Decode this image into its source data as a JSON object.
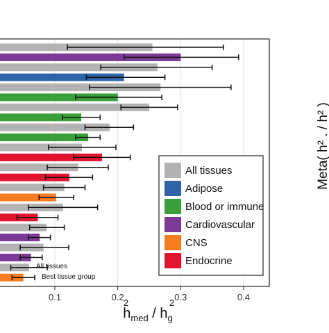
{
  "chart_data": {
    "type": "bar",
    "orientation": "horizontal",
    "xlabel": "h²med / h²g",
    "xlabel_parts": {
      "main_left": "h",
      "sup_left": "2",
      "sub_left": "med",
      "sep": " / ",
      "main_right": "h",
      "sup_right": "2",
      "sub_right": "g"
    },
    "right_axis_label": "Meta( h² . / h² )",
    "xlim": [
      -0.08,
      0.44
    ],
    "x_ticks": [
      0.1,
      0.2,
      0.3,
      0.4
    ],
    "x_tick_labels": [
      "0.1",
      "0.2",
      "0.3",
      "0.4"
    ],
    "grid": true,
    "legend_placement": "bottom-right",
    "legend": [
      {
        "label": "All tissues",
        "color": "#b3b3b3"
      },
      {
        "label": "Adipose",
        "color": "#2f64a8"
      },
      {
        "label": "Blood or immune",
        "color": "#3a9e3a"
      },
      {
        "label": "Cardiovascular",
        "color": "#7c3a96"
      },
      {
        "label": "CNS",
        "color": "#f57d1f"
      },
      {
        "label": "Endocrine",
        "color": "#e0142e"
      }
    ],
    "bars": [
      {
        "value": 0.255,
        "lo": 0.12,
        "hi": 0.368,
        "color": "#b3b3b3"
      },
      {
        "value": 0.3,
        "lo": 0.21,
        "hi": 0.392,
        "color": "#7c3a96"
      },
      {
        "value": 0.263,
        "lo": 0.173,
        "hi": 0.35,
        "color": "#b3b3b3"
      },
      {
        "value": 0.21,
        "lo": 0.15,
        "hi": 0.275,
        "color": "#2f64a8"
      },
      {
        "value": 0.268,
        "lo": 0.155,
        "hi": 0.38,
        "color": "#b3b3b3"
      },
      {
        "value": 0.2,
        "lo": 0.133,
        "hi": 0.27,
        "color": "#3a9e3a"
      },
      {
        "value": 0.25,
        "lo": 0.205,
        "hi": 0.295,
        "color": "#b3b3b3"
      },
      {
        "value": 0.142,
        "lo": 0.112,
        "hi": 0.172,
        "color": "#3a9e3a"
      },
      {
        "value": 0.187,
        "lo": 0.148,
        "hi": 0.225,
        "color": "#b3b3b3"
      },
      {
        "value": 0.153,
        "lo": 0.133,
        "hi": 0.172,
        "color": "#3a9e3a"
      },
      {
        "value": 0.143,
        "lo": 0.09,
        "hi": 0.197,
        "color": "#b3b3b3"
      },
      {
        "value": 0.175,
        "lo": 0.13,
        "hi": 0.22,
        "color": "#e0142e"
      },
      {
        "value": 0.137,
        "lo": 0.088,
        "hi": 0.185,
        "color": "#b3b3b3"
      },
      {
        "value": 0.123,
        "lo": 0.085,
        "hi": 0.16,
        "color": "#e0142e"
      },
      {
        "value": 0.115,
        "lo": 0.082,
        "hi": 0.148,
        "color": "#b3b3b3"
      },
      {
        "value": 0.102,
        "lo": 0.075,
        "hi": 0.13,
        "color": "#f57d1f"
      },
      {
        "value": 0.113,
        "lo": 0.058,
        "hi": 0.168,
        "color": "#b3b3b3"
      },
      {
        "value": 0.073,
        "lo": 0.04,
        "hi": 0.105,
        "color": "#e0142e"
      },
      {
        "value": 0.087,
        "lo": 0.06,
        "hi": 0.115,
        "color": "#b3b3b3"
      },
      {
        "value": 0.076,
        "lo": 0.058,
        "hi": 0.093,
        "color": "#7c3a96"
      },
      {
        "value": 0.082,
        "lo": 0.045,
        "hi": 0.122,
        "color": "#b3b3b3"
      },
      {
        "value": 0.062,
        "lo": 0.045,
        "hi": 0.08,
        "color": "#7c3a96"
      },
      {
        "value": 0.059,
        "lo": 0.03,
        "hi": 0.088,
        "color": "#b3b3b3"
      },
      {
        "value": 0.05,
        "lo": 0.032,
        "hi": 0.068,
        "color": "#f57d1f"
      }
    ],
    "annotations": [
      "All tissues",
      "Best tissue group"
    ]
  }
}
